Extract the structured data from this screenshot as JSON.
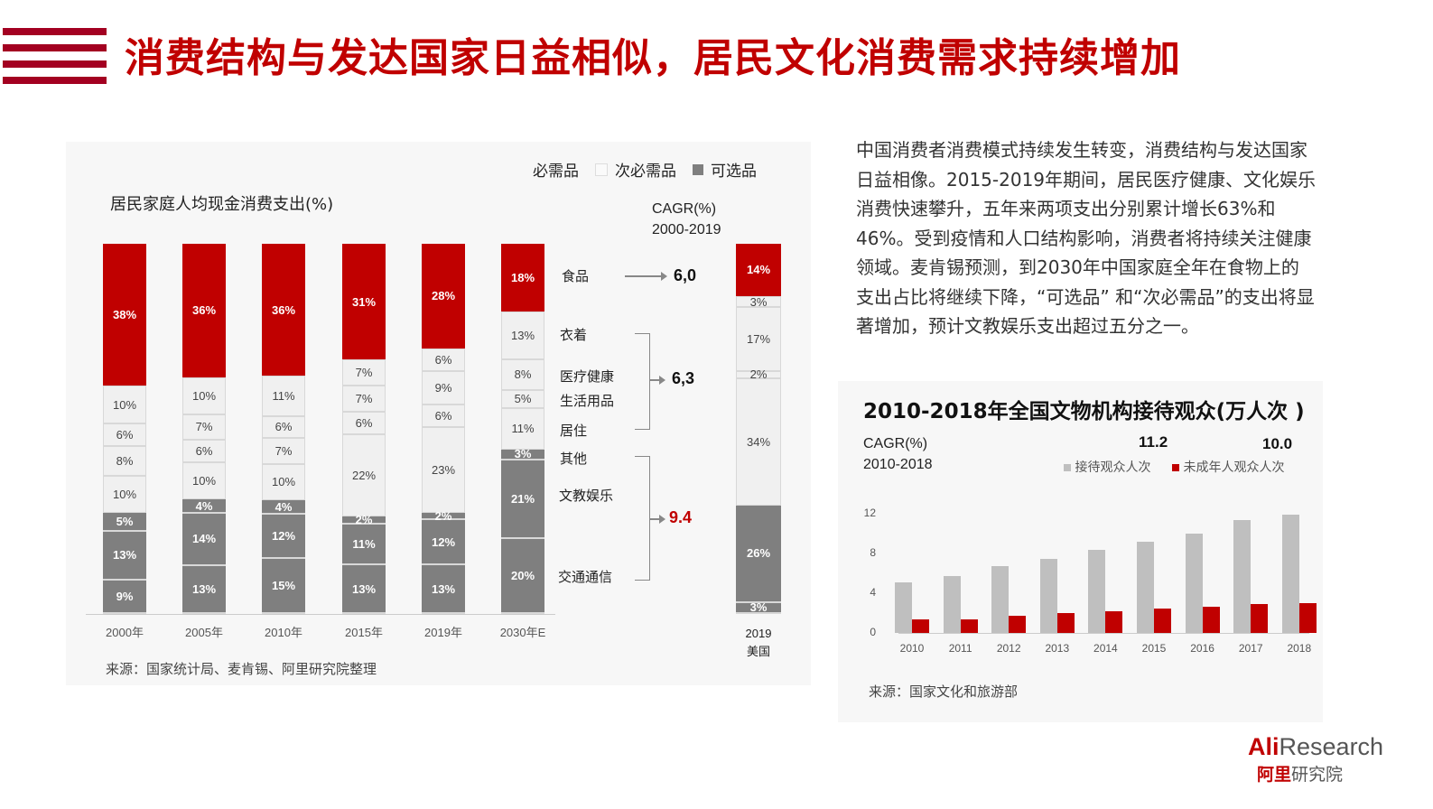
{
  "header": {
    "title": "消费结构与发达国家日益相似，居民文化消费需求持续增加"
  },
  "left_panel": {
    "chart_title": "居民家庭人均现金消费支出(%)",
    "legend": {
      "necessity": "必需品",
      "sub_necessity": "次必需品",
      "optional": "可选品"
    },
    "cagr_header_line1": "CAGR(%)",
    "cagr_header_line2": "2000-2019",
    "categories": {
      "food": "食品",
      "clothing": "衣着",
      "health": "医疗健康",
      "daily": "生活用品",
      "housing": "居住",
      "other": "其他",
      "culture": "文教娱乐",
      "transport": "交通通信"
    },
    "cagr_values": {
      "food": "6,0",
      "group2": "6,3",
      "group3": "9.4"
    },
    "us_label_line1": "2019",
    "us_label_line2": "美国",
    "source": "来源：国家统计局、麦肯锡、阿里研究院整理"
  },
  "right_text": {
    "paragraph": "中国消费者消费模式持续发生转变，消费结构与发达国家日益相像。2015-2019年期间，居民医疗健康、文化娱乐消费快速攀升，五年来两项支出分别累计增长63%和46%。受到疫情和人口结构影响，消费者将持续关注健康领域。麦肯锡预测，到2030年中国家庭全年在食物上的支出占比将继续下降，“可选品” 和“次必需品”的支出将显著增加，预计文教娱乐支出超过五分之一。"
  },
  "right_panel": {
    "title": "2010-2018年全国文物机构接待观众(万人次 )",
    "cagr_line1": "CAGR(%)",
    "cagr_line2": "2010-2018",
    "cagr_visitors": "11.2",
    "cagr_minors": "10.0",
    "legend_visitors": "接待观众人次",
    "legend_minors": "未成年人观众人次",
    "source": "来源：国家文化和旅游部"
  },
  "logo": {
    "en_red": "Ali",
    "en_gray": "Research",
    "cn_red": "阿里",
    "cn_gray": "研究院"
  },
  "colors": {
    "accent_red": "#c00000",
    "stripe_red": "#a30021",
    "optional_gray": "#7f7f7f",
    "sub_necessity_light": "#f0f0f0",
    "visitors_gray": "#bfbfbf"
  },
  "chart_data": [
    {
      "type": "bar",
      "stacked": true,
      "title": "居民家庭人均现金消费支出(%)",
      "categories": [
        "2000年",
        "2005年",
        "2010年",
        "2015年",
        "2019年",
        "2030年E",
        "2019 美国"
      ],
      "series": [
        {
          "name": "食品",
          "group": "必需品",
          "values": [
            38,
            36,
            36,
            31,
            28,
            18,
            14
          ]
        },
        {
          "name": "衣着",
          "group": "次必需品",
          "values": [
            10,
            10,
            11,
            7,
            6,
            13,
            3
          ]
        },
        {
          "name": "医疗健康",
          "group": "次必需品",
          "values": [
            6,
            7,
            6,
            7,
            9,
            8,
            17
          ]
        },
        {
          "name": "生活用品",
          "group": "次必需品",
          "values": [
            8,
            6,
            7,
            6,
            6,
            5,
            2
          ]
        },
        {
          "name": "居住",
          "group": "次必需品",
          "values": [
            10,
            10,
            10,
            22,
            23,
            11,
            34
          ]
        },
        {
          "name": "其他",
          "group": "可选品",
          "values": [
            5,
            4,
            4,
            2,
            2,
            3,
            0
          ]
        },
        {
          "name": "文教娱乐",
          "group": "可选品",
          "values": [
            13,
            14,
            12,
            11,
            12,
            21,
            26
          ]
        },
        {
          "name": "交通通信",
          "group": "可选品",
          "values": [
            9,
            13,
            15,
            13,
            13,
            20,
            3
          ]
        }
      ],
      "legend": [
        "必需品",
        "次必需品",
        "可选品"
      ],
      "annotations": {
        "cagr_title": "CAGR(%) 2000-2019",
        "食品": "6,0",
        "衣着/医疗健康/生活用品/居住": "6,3",
        "其他/文教娱乐/交通通信": "9.4"
      },
      "ylabel": "%",
      "source": "来源：国家统计局、麦肯锡、阿里研究院整理"
    },
    {
      "type": "bar",
      "title": "2010-2018年全国文物机构接待观众(万人次 )",
      "categories": [
        "2010",
        "2011",
        "2012",
        "2013",
        "2014",
        "2015",
        "2016",
        "2017",
        "2018"
      ],
      "series": [
        {
          "name": "接待观众人次",
          "values": [
            5.1,
            5.7,
            6.7,
            7.5,
            8.4,
            9.2,
            10.0,
            11.4,
            11.9
          ],
          "cagr": 11.2
        },
        {
          "name": "未成年人观众人次",
          "values": [
            1.4,
            1.4,
            1.7,
            2.0,
            2.2,
            2.5,
            2.6,
            2.9,
            3.0
          ],
          "cagr": 10.0
        }
      ],
      "yticks": [
        0,
        4,
        8,
        12
      ],
      "ylim": [
        0,
        12
      ],
      "grid": false,
      "legend_position": "top-right",
      "source": "来源：国家文化和旅游部"
    }
  ]
}
